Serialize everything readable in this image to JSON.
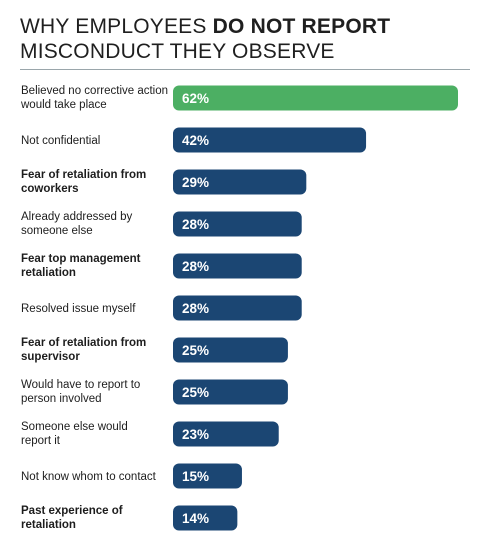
{
  "title": {
    "prefix": "WHY EMPLOYEES ",
    "emphasis": "DO NOT REPORT",
    "suffix": " MISCONDUCT THEY OBSERVE"
  },
  "colors": {
    "highlight": "#4caf63",
    "bar": "#1b4673",
    "divider": "#9aa6ab"
  },
  "chart_data": {
    "type": "bar",
    "orientation": "horizontal",
    "title": "WHY EMPLOYEES DO NOT REPORT MISCONDUCT THEY OBSERVE",
    "xlim": [
      0,
      62
    ],
    "grid": false,
    "legend": "none",
    "categories": [
      {
        "lines": [
          "Believed no corrective action",
          "would take place"
        ],
        "bold": false,
        "highlight": true
      },
      {
        "lines": [
          "Not confidential"
        ],
        "bold": false,
        "highlight": false
      },
      {
        "lines": [
          "Fear of retaliation from",
          "coworkers"
        ],
        "bold": true,
        "highlight": false
      },
      {
        "lines": [
          "Already addressed by",
          "someone else"
        ],
        "bold": false,
        "highlight": false
      },
      {
        "lines": [
          "Fear top management",
          "retaliation"
        ],
        "bold": true,
        "highlight": false
      },
      {
        "lines": [
          "Resolved issue myself"
        ],
        "bold": false,
        "highlight": false
      },
      {
        "lines": [
          "Fear of retaliation from",
          "supervisor"
        ],
        "bold": true,
        "highlight": false
      },
      {
        "lines": [
          "Would have to report to",
          "person involved"
        ],
        "bold": false,
        "highlight": false
      },
      {
        "lines": [
          "Someone else would",
          "report it"
        ],
        "bold": false,
        "highlight": false
      },
      {
        "lines": [
          "Not know whom to contact"
        ],
        "bold": false,
        "highlight": false
      },
      {
        "lines": [
          "Past experience of",
          "retaliation"
        ],
        "bold": true,
        "highlight": false
      }
    ],
    "values": [
      62,
      42,
      29,
      28,
      28,
      28,
      25,
      25,
      23,
      15,
      14
    ],
    "value_labels": [
      "62%",
      "42%",
      "29%",
      "28%",
      "28%",
      "28%",
      "25%",
      "25%",
      "23%",
      "15%",
      "14%"
    ]
  }
}
